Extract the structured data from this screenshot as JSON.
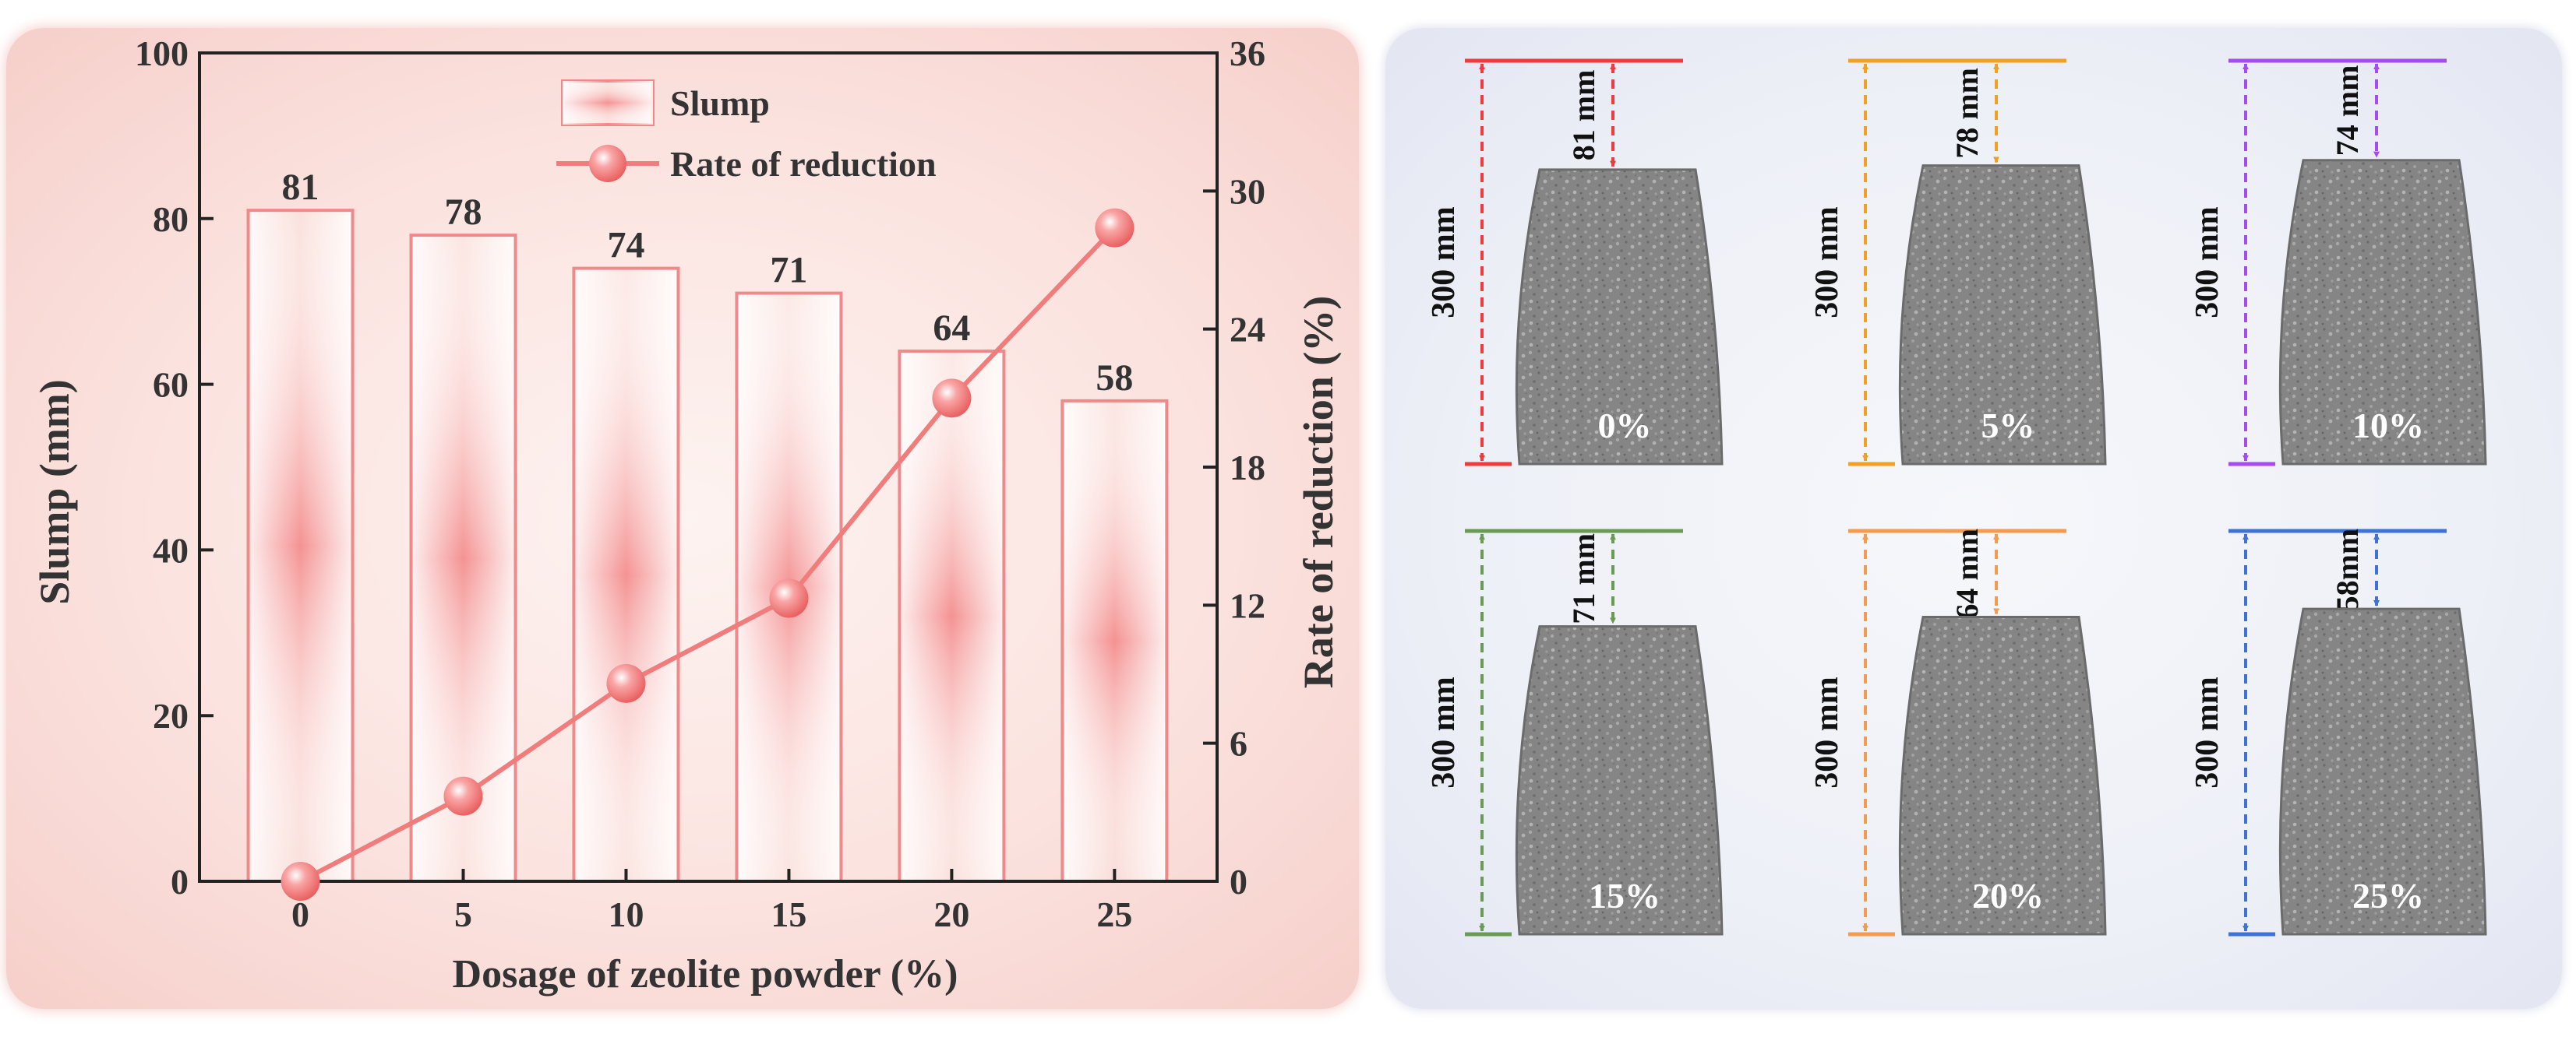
{
  "chart_data": {
    "type": "bar",
    "categories": [
      "0",
      "5",
      "10",
      "15",
      "20",
      "25"
    ],
    "series": [
      {
        "name": "Slump",
        "axis": "left",
        "type": "bar",
        "values": [
          81,
          78,
          74,
          71,
          64,
          58
        ]
      },
      {
        "name": "Rate of reduction",
        "axis": "right",
        "type": "line",
        "values": [
          0,
          3.7,
          8.6,
          12.3,
          21.0,
          28.4
        ]
      }
    ],
    "xlabel": "Dosage of zeolite powder (%)",
    "ylabel": "Slump (mm)",
    "y2label": "Rate of reduction (%)",
    "ylim": [
      0,
      100
    ],
    "y2lim": [
      0,
      36
    ],
    "yticks": [
      "0",
      "20",
      "40",
      "60",
      "80",
      "100"
    ],
    "y2ticks": [
      "0",
      "6",
      "12",
      "18",
      "24",
      "30",
      "36"
    ],
    "data_labels": [
      "81",
      "78",
      "74",
      "71",
      "64",
      "58"
    ],
    "legend": {
      "position": "top-center",
      "entries": [
        "Slump",
        "Rate of reduction"
      ]
    },
    "colors": {
      "bar_edge": "#f08a8a",
      "bar_fill": "#f48e8e",
      "line": "#f07c7c",
      "marker": "#f06a6a"
    }
  },
  "diagram": {
    "cone_height_label": "300 mm",
    "specimens": [
      {
        "dosage_label": "0%",
        "slump_label": "81 mm",
        "slump": 81,
        "color": "#ef3b3b"
      },
      {
        "dosage_label": "5%",
        "slump_label": "78 mm",
        "slump": 78,
        "color": "#f2a024"
      },
      {
        "dosage_label": "10%",
        "slump_label": "74 mm",
        "slump": 74,
        "color": "#a64bf2"
      },
      {
        "dosage_label": "15%",
        "slump_label": "71 mm",
        "slump": 71,
        "color": "#6a9b55"
      },
      {
        "dosage_label": "20%",
        "slump_label": "64 mm",
        "slump": 64,
        "color": "#f39b4e"
      },
      {
        "dosage_label": "25%",
        "slump_label": "58mm",
        "slump": 58,
        "color": "#3f72d6"
      }
    ]
  }
}
